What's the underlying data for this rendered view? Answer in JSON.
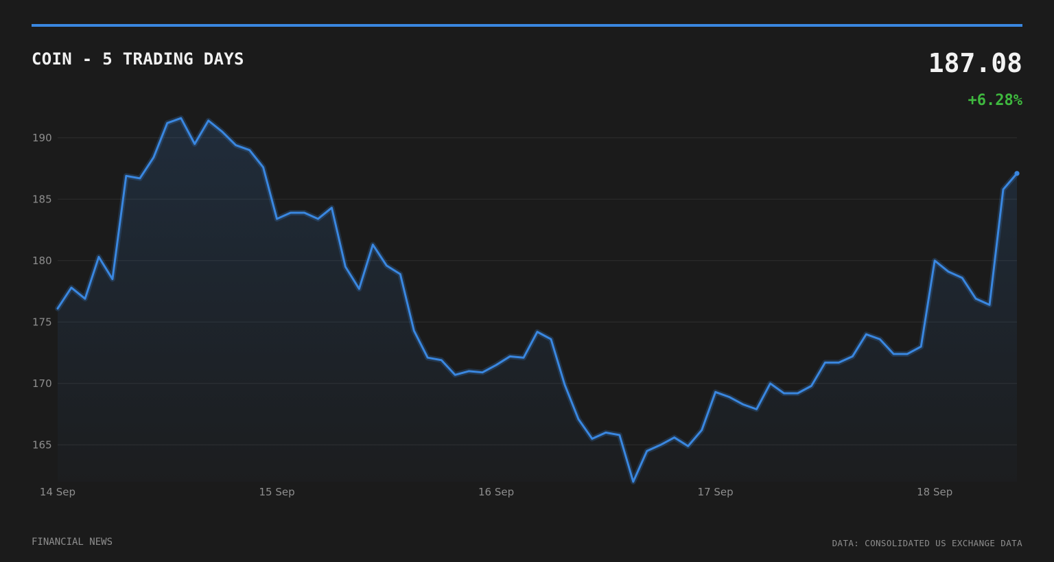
{
  "header": {
    "title": "COIN - 5 TRADING DAYS",
    "price": "187.08",
    "change": "+6.28%"
  },
  "footer": {
    "source_left": "FINANCIAL NEWS",
    "source_right": "DATA: CONSOLIDATED US EXCHANGE DATA"
  },
  "colors": {
    "accent": "#3a87e0",
    "positive": "#3fb93f",
    "background": "#1b1b1b",
    "grid": "#2e2e2e",
    "tick_text": "#8e8e8e"
  },
  "chart_data": {
    "type": "area",
    "title": "COIN - 5 TRADING DAYS",
    "xlabel": "",
    "ylabel": "",
    "ylim": [
      162,
      192
    ],
    "y_ticks": [
      165,
      170,
      175,
      180,
      185,
      190
    ],
    "x_ticks": [
      {
        "label": "14 Sep",
        "index": 0
      },
      {
        "label": "15 Sep",
        "index": 16
      },
      {
        "label": "16 Sep",
        "index": 32
      },
      {
        "label": "17 Sep",
        "index": 48
      },
      {
        "label": "18 Sep",
        "index": 64
      }
    ],
    "grid": true,
    "legend": "none",
    "series": [
      {
        "values": [
          176.1,
          177.8,
          176.9,
          180.3,
          178.5,
          186.9,
          186.7,
          188.4,
          191.2,
          191.6,
          189.5,
          191.4,
          190.5,
          189.4,
          189.0,
          187.6,
          183.4,
          183.9,
          183.9,
          183.4,
          184.3,
          179.5,
          177.7,
          181.3,
          179.6,
          178.9,
          174.3,
          172.1,
          171.9,
          170.7,
          171.0,
          170.9,
          171.5,
          172.2,
          172.1,
          174.2,
          173.6,
          169.9,
          167.1,
          165.5,
          166.0,
          165.8,
          162.0,
          164.5,
          165.0,
          165.6,
          164.9,
          166.2,
          169.3,
          168.9,
          168.3,
          167.9,
          170.0,
          169.2,
          169.2,
          169.8,
          171.7,
          171.7,
          172.2,
          174.0,
          173.6,
          172.4,
          172.4,
          173.0,
          180.0,
          179.1,
          178.6,
          176.9,
          176.4,
          185.8,
          187.1
        ]
      }
    ]
  }
}
